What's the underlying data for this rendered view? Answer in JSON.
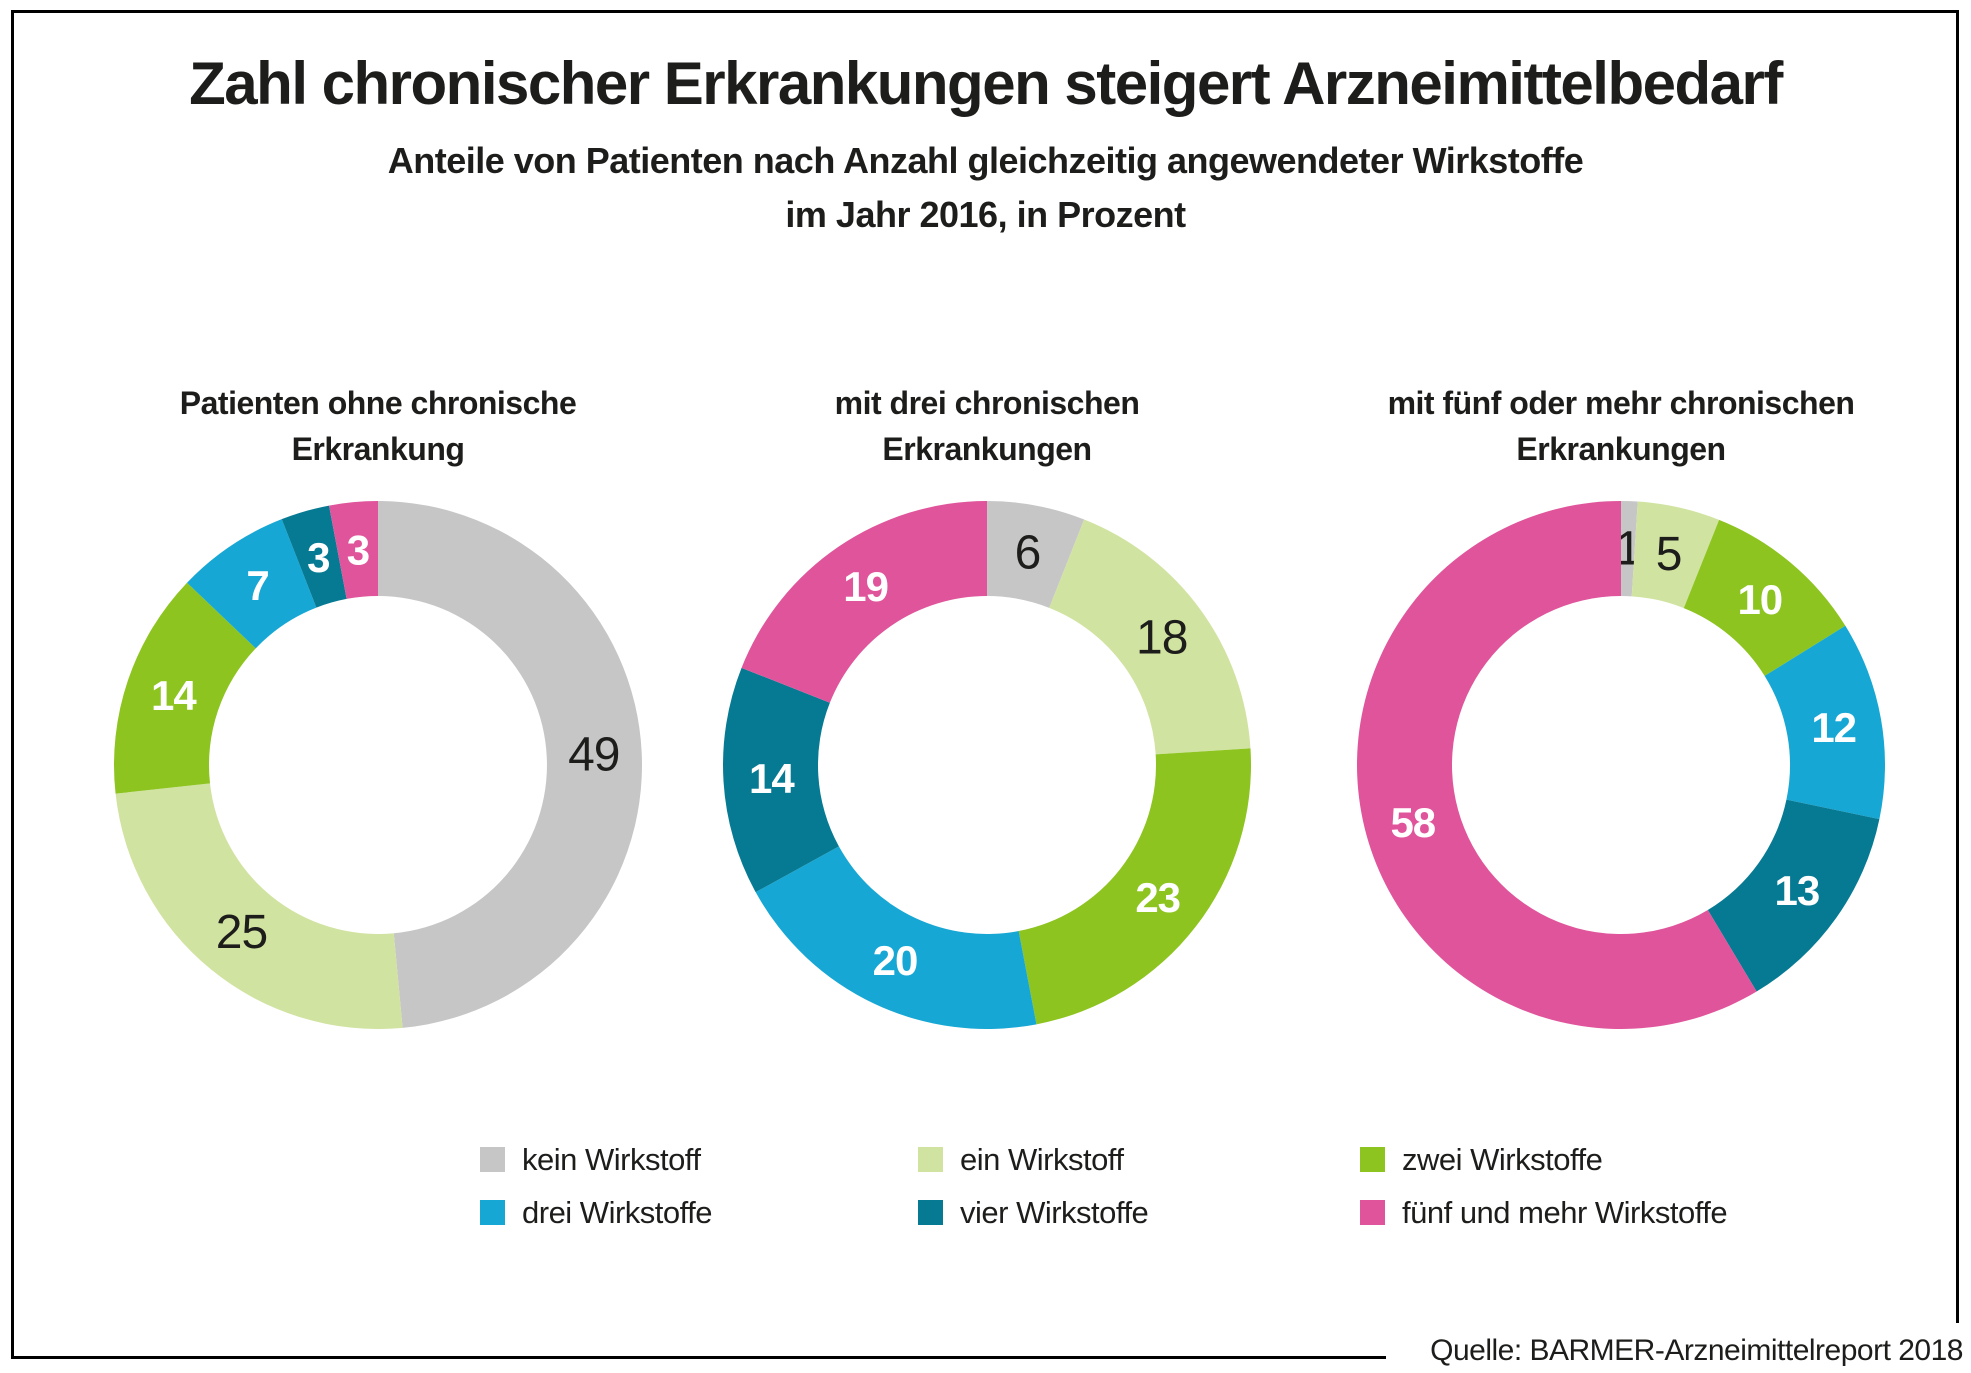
{
  "header": {
    "title": "Zahl chronischer Erkrankungen steigert Arzneimittelbedarf",
    "subtitle_line1": "Anteile von Patienten nach Anzahl gleichzeitig angewendeter Wirkstoffe",
    "subtitle_line2": "im Jahr 2016, in Prozent"
  },
  "source": "Quelle: BARMER-Arzneimittelreport 2018",
  "palette": {
    "kein_wirkstoff": "#c6c6c6",
    "ein_wirkstoff": "#d1e3a1",
    "zwei_wirkstoffe": "#8dc41f",
    "drei_wirkstoffe": "#17a7d4",
    "vier_wirkstoffe": "#067a93",
    "fuenf_und_mehr_wirkstoffe": "#e0549b",
    "dark_text": "#1d1d1b",
    "light_text": "#ffffff",
    "frame": "#000000"
  },
  "legend": {
    "items": [
      {
        "label": "kein Wirkstoff",
        "color": "#c6c6c6"
      },
      {
        "label": "ein Wirkstoff",
        "color": "#d1e3a1"
      },
      {
        "label": "zwei Wirkstoffe",
        "color": "#8dc41f"
      },
      {
        "label": "drei Wirkstoffe",
        "color": "#17a7d4"
      },
      {
        "label": "vier Wirkstoffe",
        "color": "#067a93"
      },
      {
        "label": "fünf und mehr Wirkstoffe",
        "color": "#e0549b"
      }
    ],
    "position": "bottom",
    "columns": 3
  },
  "chart_data": {
    "type": "pie",
    "variant": "donut",
    "unit": "percent",
    "start": "top",
    "direction": "clockwise",
    "categories": [
      "kein Wirkstoff",
      "ein Wirkstoff",
      "zwei Wirkstoffe",
      "drei Wirkstoffe",
      "vier Wirkstoffe",
      "fünf und mehr Wirkstoffe"
    ],
    "colors": [
      "#c6c6c6",
      "#d1e3a1",
      "#8dc41f",
      "#17a7d4",
      "#067a93",
      "#e0549b"
    ],
    "value_label_colors": [
      "#1d1d1b",
      "#1d1d1b",
      "#ffffff",
      "#ffffff",
      "#ffffff",
      "#ffffff"
    ],
    "charts": [
      {
        "title_lines": [
          "Patienten ohne chronische",
          "Erkrankung"
        ],
        "values": [
          49,
          25,
          14,
          7,
          3,
          3
        ]
      },
      {
        "title_lines": [
          "mit drei chronischen",
          "Erkrankungen"
        ],
        "values": [
          6,
          18,
          23,
          20,
          14,
          19
        ]
      },
      {
        "title_lines": [
          "mit fünf oder mehr chronischen",
          "Erkrankungen"
        ],
        "values": [
          1,
          5,
          10,
          12,
          13,
          58
        ]
      }
    ]
  }
}
